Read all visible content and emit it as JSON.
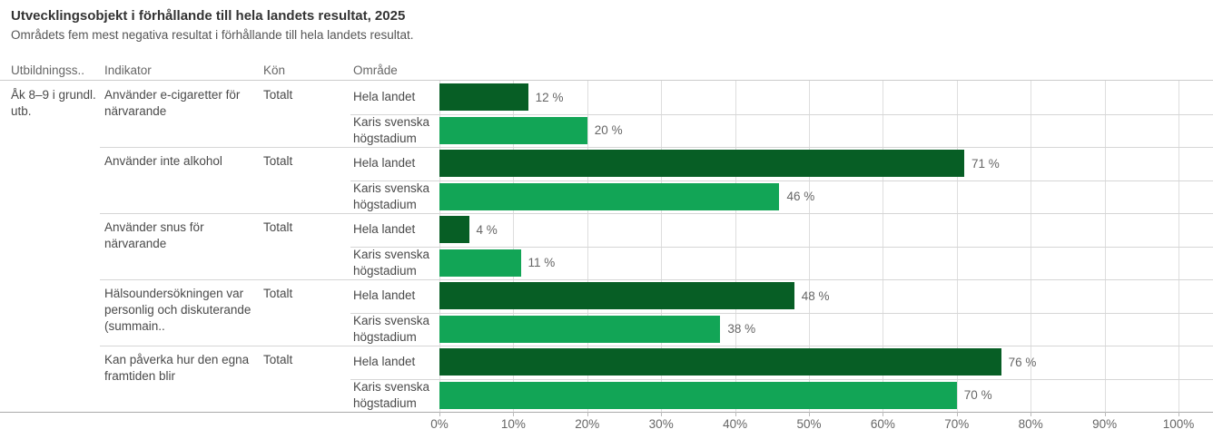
{
  "title": "Utvecklingsobjekt i förhållande till hela landets resultat, 2025",
  "subtitle": "Områdets fem mest negativa resultat i förhållande till hela landets resultat.",
  "table": {
    "column_headers": {
      "education": "Utbildningss..",
      "indicator": "Indikator",
      "gender": "Kön",
      "area": "Område"
    },
    "education_level": "Åk 8–9 i grundl. utb."
  },
  "colors": {
    "hela_landet_bar": "#075e25",
    "area_bar": "#12a556",
    "grid_line": "#dedede",
    "separator_line": "#d6d6d6",
    "axis_text": "#666666",
    "cell_text": "#4a4a4a",
    "title_text": "#333333"
  },
  "chart_data": {
    "type": "bar",
    "orientation": "horizontal",
    "unit": "%",
    "title": "Utvecklingsobjekt i förhållande till hela landets resultat, 2025",
    "x_axis": {
      "min": 0,
      "max": 100,
      "tick_labels": [
        "0%",
        "10%",
        "20%",
        "30%",
        "40%",
        "50%",
        "60%",
        "70%",
        "80%",
        "90%",
        "100%"
      ],
      "grid": true
    },
    "series_legend": [
      "Hela landet",
      "Karis svenska högstadium"
    ],
    "groups": [
      {
        "indicator": "Använder e-cigaretter för närvarande",
        "gender": "Totalt",
        "bars": [
          {
            "area": "Hela landet",
            "value": 12,
            "label": "12 %"
          },
          {
            "area": "Karis svenska högstadium",
            "value": 20,
            "label": "20 %"
          }
        ]
      },
      {
        "indicator": "Använder inte alkohol",
        "gender": "Totalt",
        "bars": [
          {
            "area": "Hela landet",
            "value": 71,
            "label": "71 %"
          },
          {
            "area": "Karis svenska högstadium",
            "value": 46,
            "label": "46 %"
          }
        ]
      },
      {
        "indicator": "Använder snus för närvarande",
        "gender": "Totalt",
        "bars": [
          {
            "area": "Hela landet",
            "value": 4,
            "label": "4 %"
          },
          {
            "area": "Karis svenska högstadium",
            "value": 11,
            "label": "11 %"
          }
        ]
      },
      {
        "indicator": "Hälsoundersökningen var personlig och diskuterande (summain..",
        "gender": "Totalt",
        "bars": [
          {
            "area": "Hela landet",
            "value": 48,
            "label": "48 %"
          },
          {
            "area": "Karis svenska högstadium",
            "value": 38,
            "label": "38 %"
          }
        ]
      },
      {
        "indicator": "Kan påverka hur den egna framtiden blir",
        "gender": "Totalt",
        "bars": [
          {
            "area": "Hela landet",
            "value": 76,
            "label": "76 %"
          },
          {
            "area": "Karis svenska högstadium",
            "value": 70,
            "label": "70 %"
          }
        ]
      }
    ]
  }
}
